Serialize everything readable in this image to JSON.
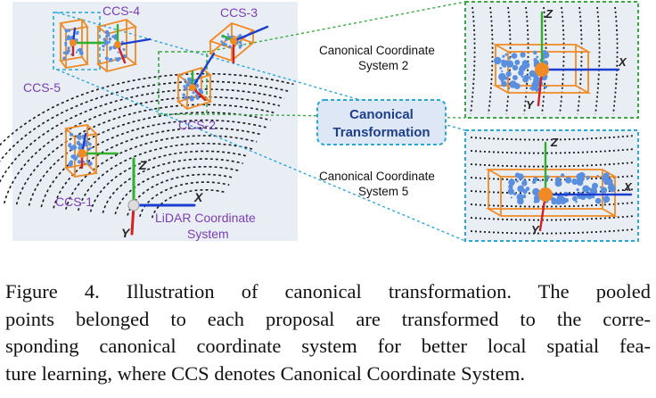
{
  "figure": {
    "ccs_labels": {
      "ccs1": "CCS-1",
      "ccs2": "CCS-2",
      "ccs3": "CCS-3",
      "ccs4": "CCS-4",
      "ccs5": "CCS-5"
    },
    "lidar_label_line1": "LiDAR Coordinate",
    "lidar_label_line2": "System",
    "axis_x": "X",
    "axis_y": "Y",
    "axis_z": "Z",
    "transform_line1": "Canonical",
    "transform_line2": "Transformation",
    "ccs2_caption_line1": "Canonical Coordinate",
    "ccs2_caption_line2": "System 2",
    "ccs5_caption_line1": "Canonical Coordinate",
    "ccs5_caption_line2": "System 5",
    "colors": {
      "box": "#f08a24",
      "green_dashed": "#3aa845",
      "cyan_dashed": "#2aa7d6",
      "x_axis": "#1a3fd0",
      "y_axis": "#d42020",
      "z_axis": "#2fb02f",
      "points": "#5a8fe0",
      "ccs_label": "#7a3fb3",
      "transform_text": "#1f3f8a"
    }
  },
  "caption": {
    "line1": "Figure 4. Illustration of canonical transformation.  The pooled",
    "line2": "points belonged to each proposal are transformed to the corre-",
    "line3": "sponding canonical coordinate system for better local spatial fea-",
    "line4": "ture learning, where CCS denotes Canonical Coordinate System."
  }
}
